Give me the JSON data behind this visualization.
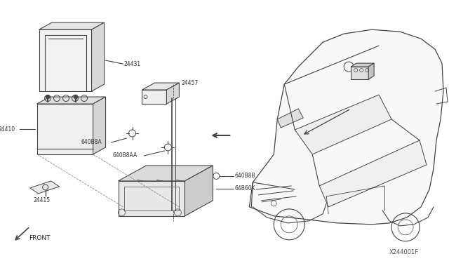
{
  "bg_color": "#ffffff",
  "line_color": "#444444",
  "diagram_id": "X244001F",
  "front_label": "FRONT",
  "parts": {
    "battery_cover": "24431",
    "battery": "24410",
    "bracket_small": "24415",
    "clamp": "24457",
    "bracket_A": "640B8A",
    "bracket_AA": "640B8AA",
    "bracket_B": "640B8B",
    "tray": "64B60K"
  },
  "figure_width": 6.4,
  "figure_height": 3.72,
  "dpi": 100
}
